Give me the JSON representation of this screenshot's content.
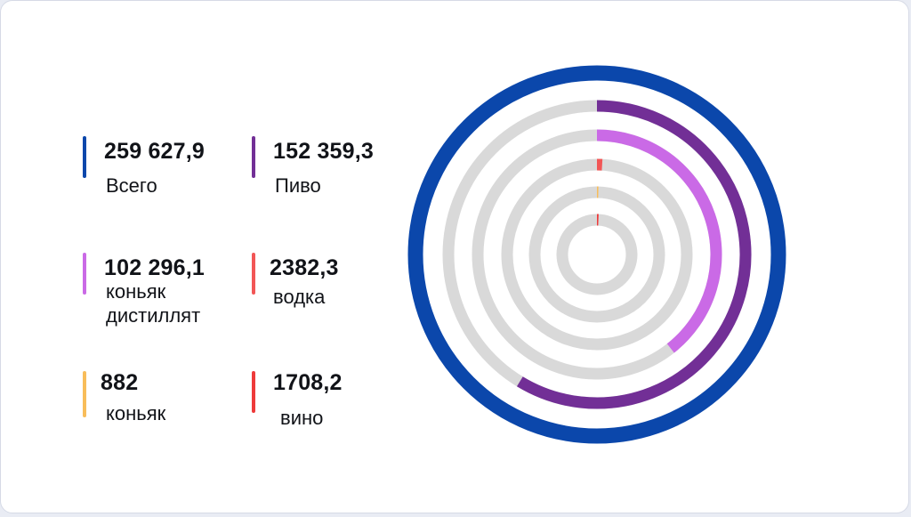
{
  "chart_data": {
    "type": "radial-bar",
    "title": "",
    "max": 259627.9,
    "series": [
      {
        "name": "Всего",
        "value": 259627.9,
        "value_label": "259 627,9",
        "label": "Всего",
        "color": "#0b47ab",
        "ring": 0
      },
      {
        "name": "Пиво",
        "value": 152359.3,
        "value_label": "152 359,3",
        "label": "Пиво",
        "color": "#722f96",
        "ring": 1
      },
      {
        "name": "коньяк дистиллят",
        "value": 102296.1,
        "value_label": "102 296,1",
        "label": "коньяк\nдистиллят",
        "color": "#ca6ae6",
        "ring": 2
      },
      {
        "name": "водка",
        "value": 2382.3,
        "value_label": "2382,3",
        "label": "водка",
        "color": "#f25656",
        "ring": 3
      },
      {
        "name": "коньяк",
        "value": 882,
        "value_label": "882",
        "label": "коньяк",
        "color": "#f8bd5a",
        "ring": 4
      },
      {
        "name": "вино",
        "value": 1708.2,
        "value_label": "1708,2",
        "label": "вино",
        "color": "#ee3a3a",
        "ring": 5
      }
    ],
    "track_color": "#d9d9d9"
  }
}
